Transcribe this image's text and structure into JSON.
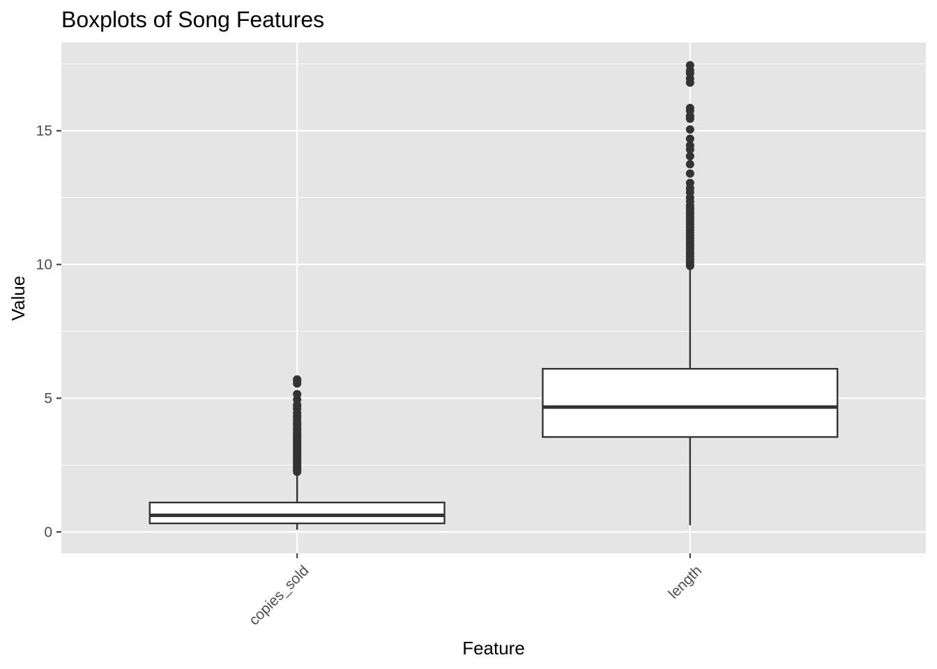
{
  "chart_data": {
    "type": "boxplot",
    "title": "Boxplots of Song Features",
    "xlabel": "Feature",
    "ylabel": "Value",
    "ylim": [
      -0.8,
      18.3
    ],
    "y_ticks": [
      0,
      5,
      10,
      15
    ],
    "y_minor_ticks": [
      2.5,
      7.5,
      12.5,
      17.5
    ],
    "grid": true,
    "legend": "none",
    "colors": {
      "panel_background": "#e5e5e5",
      "grid": "#ffffff",
      "box_fill": "#ffffff",
      "box_line": "#333333",
      "outlier": "#333333",
      "tick_text": "#4d4d4d"
    },
    "categories": [
      "copies_sold",
      "length"
    ],
    "series": [
      {
        "category": "copies_sold",
        "min": 0.08,
        "q1": 0.32,
        "median": 0.62,
        "q3": 1.1,
        "max": 2.2,
        "outliers": [
          2.25,
          2.3,
          2.35,
          2.4,
          2.45,
          2.5,
          2.55,
          2.6,
          2.65,
          2.7,
          2.75,
          2.8,
          2.85,
          2.9,
          2.95,
          3.0,
          3.05,
          3.1,
          3.15,
          3.2,
          3.25,
          3.3,
          3.35,
          3.4,
          3.45,
          3.5,
          3.55,
          3.6,
          3.65,
          3.7,
          3.8,
          3.85,
          3.9,
          4.0,
          4.05,
          4.1,
          4.2,
          4.3,
          4.35,
          4.45,
          4.6,
          4.7,
          4.75,
          4.95,
          5.15,
          5.55,
          5.65,
          5.7
        ]
      },
      {
        "category": "length",
        "min": 0.25,
        "q1": 3.55,
        "median": 4.67,
        "q3": 6.1,
        "max": 9.9,
        "outliers": [
          9.95,
          10.0,
          10.1,
          10.2,
          10.3,
          10.4,
          10.5,
          10.6,
          10.7,
          10.8,
          10.9,
          11.0,
          11.1,
          11.2,
          11.3,
          11.4,
          11.5,
          11.6,
          11.7,
          11.8,
          11.9,
          12.0,
          12.1,
          12.2,
          12.35,
          12.5,
          12.7,
          12.85,
          13.05,
          13.4,
          13.75,
          14.05,
          14.3,
          14.45,
          14.7,
          15.05,
          15.45,
          15.55,
          15.75,
          15.85,
          16.8,
          16.95,
          17.15,
          17.25,
          17.45
        ]
      }
    ]
  }
}
